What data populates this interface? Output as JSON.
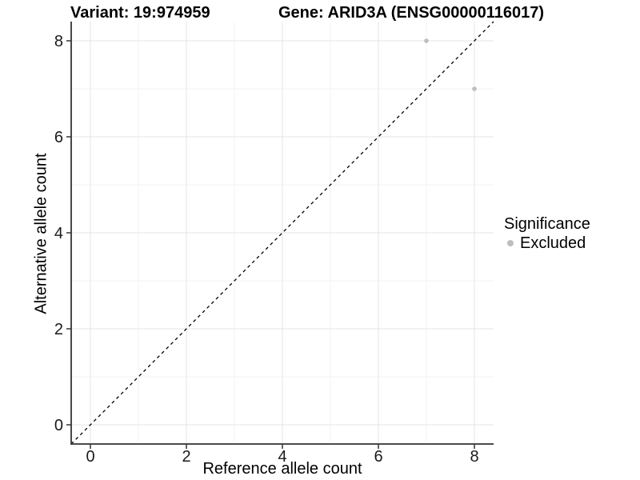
{
  "header": {
    "variant_title": "Variant: 19:974959",
    "gene_title": "Gene: ARID3A (ENSG00000116017)"
  },
  "chart_data": {
    "type": "scatter",
    "xlabel": "Reference allele count",
    "ylabel": "Alternative allele count",
    "xlim": [
      -0.4,
      8.4
    ],
    "ylim": [
      -0.4,
      8.4
    ],
    "x_ticks": [
      0,
      2,
      4,
      6,
      8
    ],
    "y_ticks": [
      0,
      2,
      4,
      6,
      8
    ],
    "x_minor_ticks": [
      1,
      3,
      5,
      7
    ],
    "y_minor_ticks": [
      1,
      3,
      5,
      7
    ],
    "grid": "major-and-minor",
    "reference_line": {
      "type": "identity",
      "slope": 1,
      "intercept": 0,
      "style": "dashed",
      "color": "#000000"
    },
    "series": [
      {
        "name": "Excluded",
        "color": "#bebebe",
        "points": [
          {
            "x": 7,
            "y": 8
          },
          {
            "x": 8,
            "y": 7
          }
        ]
      }
    ],
    "legend": {
      "title": "Significance",
      "position": "right",
      "items": [
        {
          "label": "Excluded",
          "color": "#bebebe"
        }
      ]
    }
  },
  "colors": {
    "background": "#ffffff",
    "grid_major": "#e4e4e4",
    "grid_minor": "#f3f3f3",
    "axis_line": "#333333",
    "tick_mark": "#333333",
    "tick_label": "#1a1a1a",
    "point": "#bebebe"
  }
}
